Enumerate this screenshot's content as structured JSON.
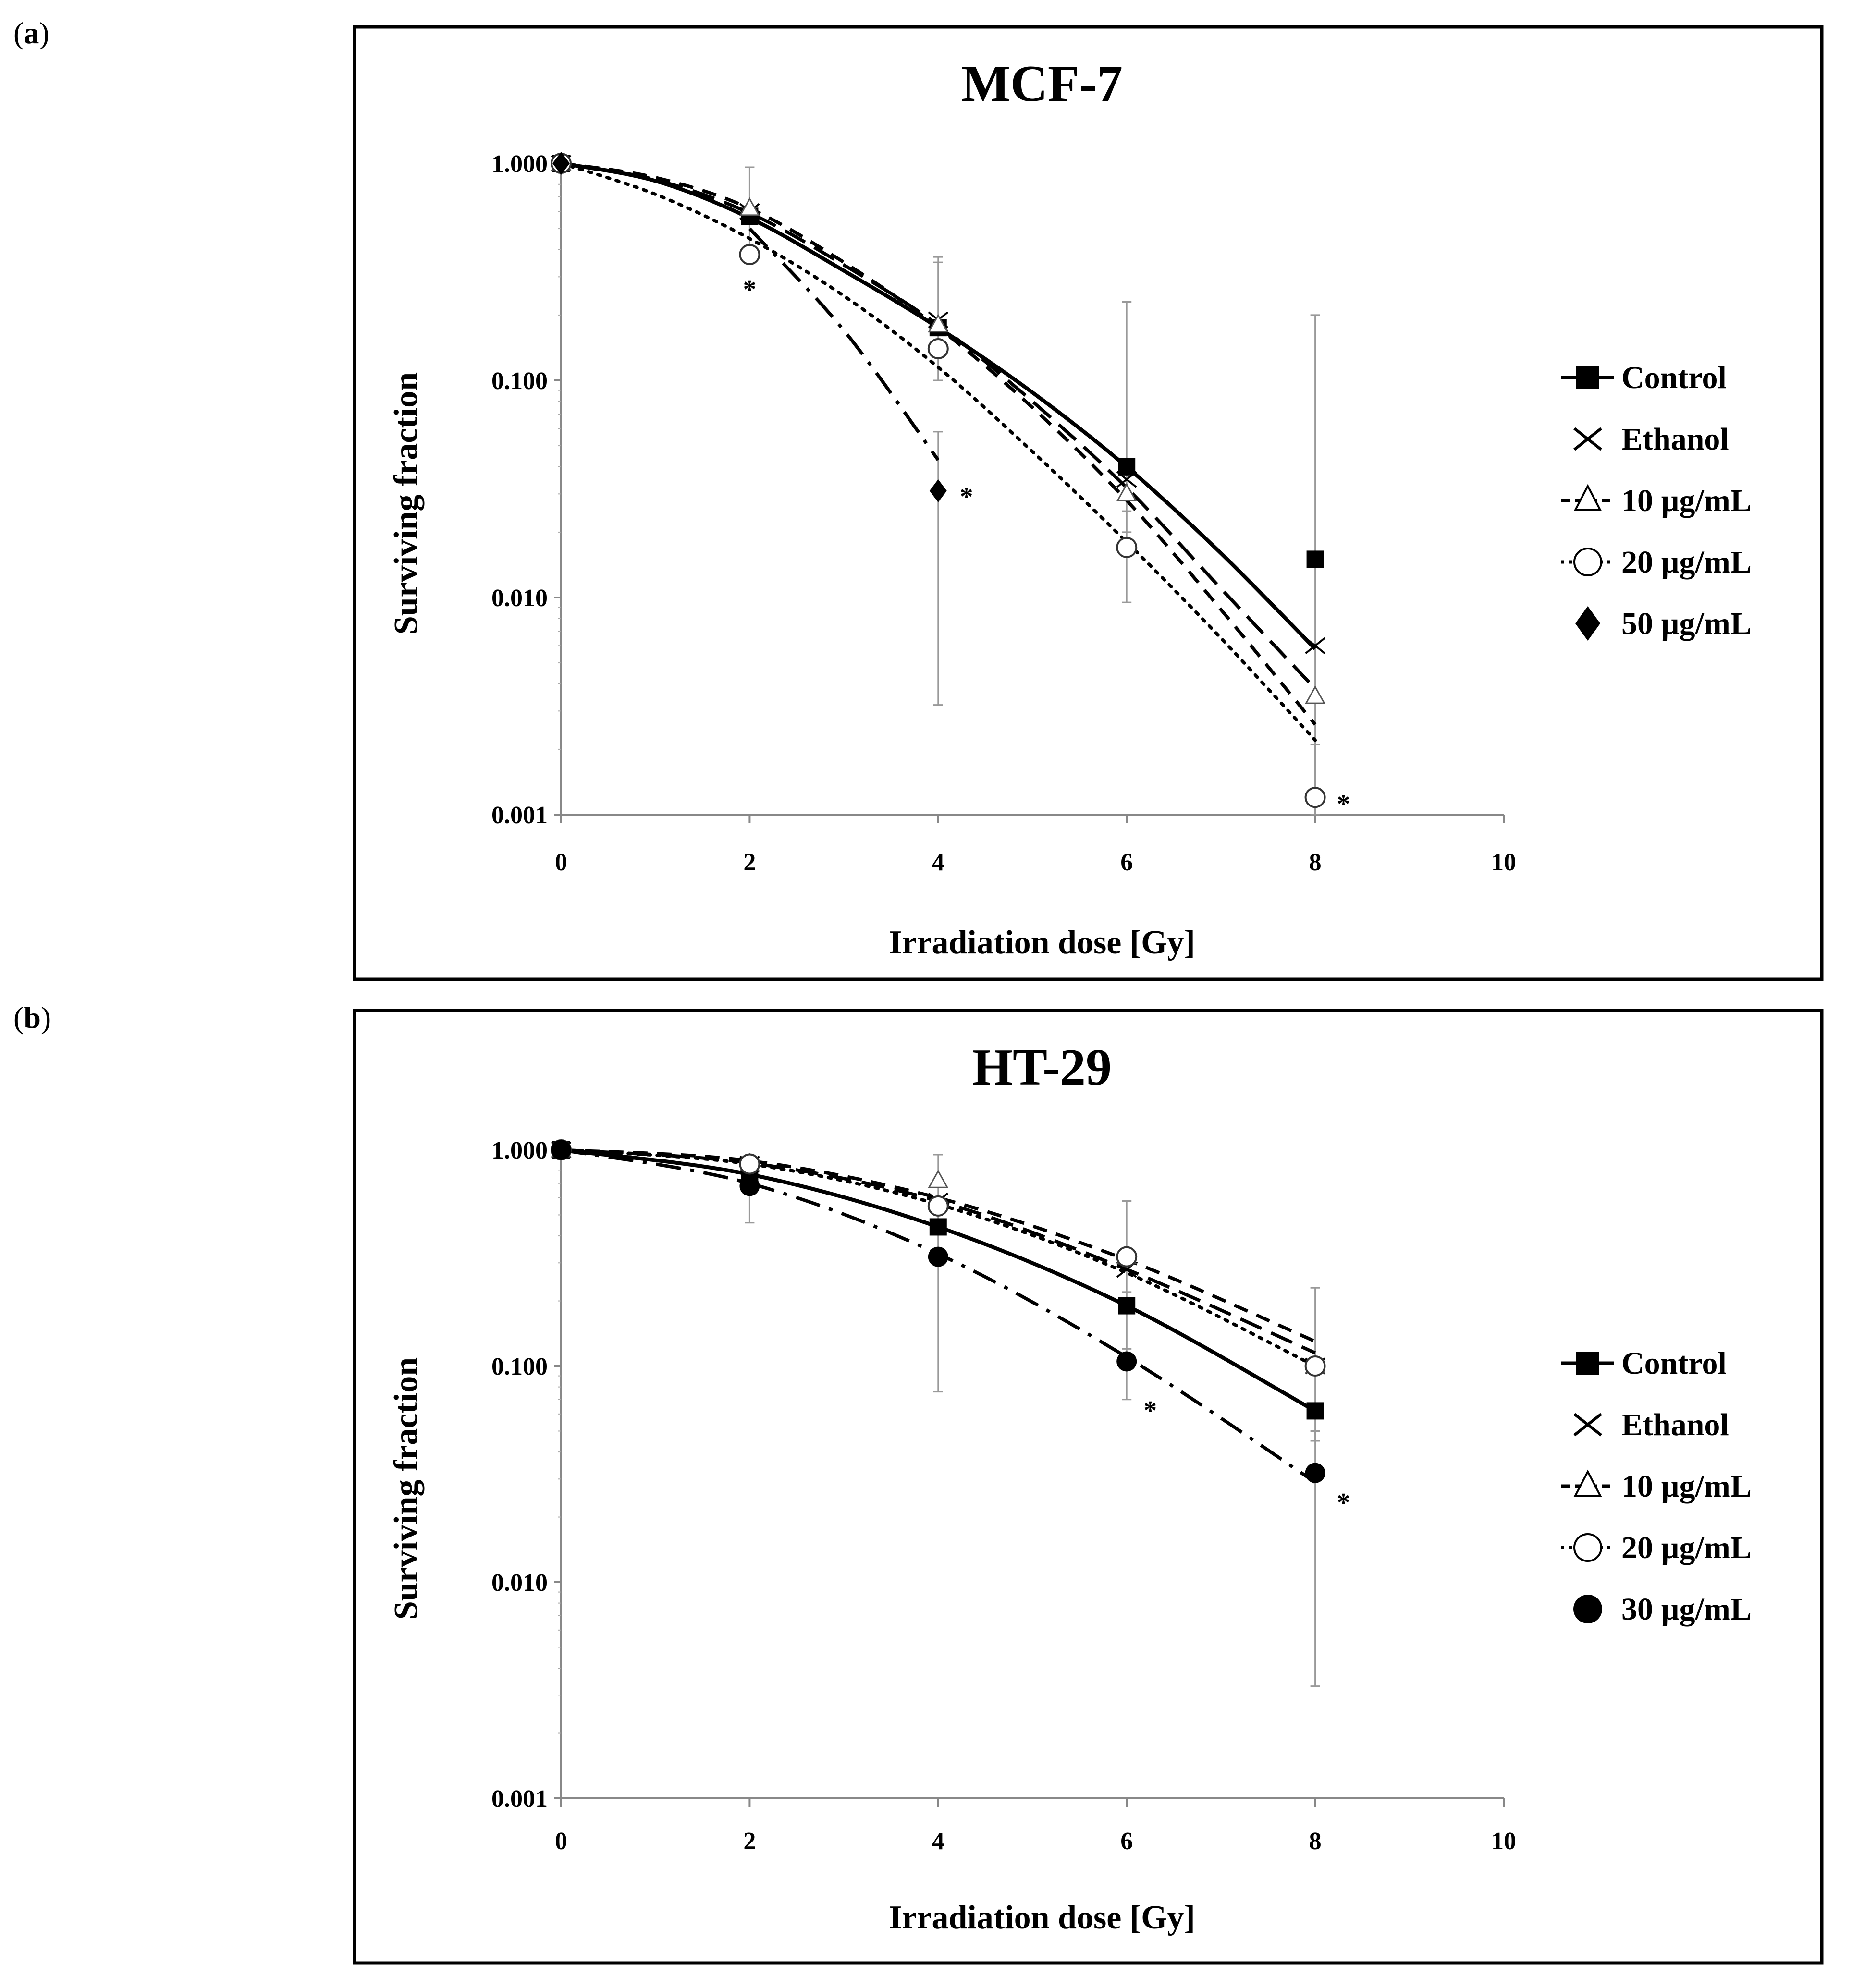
{
  "figure": {
    "panels": [
      {
        "label_open": "(",
        "label_letter": "a",
        "label_close": ")"
      },
      {
        "label_open": "(",
        "label_letter": "b",
        "label_close": ")"
      }
    ]
  },
  "chart_data": [
    {
      "type": "line",
      "title": "MCF-7",
      "xlabel": "Irradiation dose [Gy]",
      "ylabel": "Surviving fraction",
      "yscale": "log",
      "xlim": [
        0,
        10
      ],
      "ylim": [
        0.001,
        1
      ],
      "x_ticks": [
        "0",
        "2",
        "4",
        "6",
        "8",
        "10"
      ],
      "y_ticks": [
        "1.000",
        "0.100",
        "0.010",
        "0.001"
      ],
      "x_tick_values": [
        0,
        2,
        4,
        6,
        8,
        10
      ],
      "y_tick_values": [
        1,
        0.1,
        0.01,
        0.001
      ],
      "series": [
        {
          "name": "Control",
          "marker": "square",
          "line": "solid",
          "points": [
            {
              "x": 0,
              "y": 1
            },
            {
              "x": 2,
              "y": 0.57
            },
            {
              "x": 4,
              "y": 0.175
            },
            {
              "x": 6,
              "y": 0.04
            },
            {
              "x": 8,
              "y": 0.015
            }
          ],
          "errors": [
            {
              "x": 2,
              "lo": 0.38,
              "hi": 0.96
            },
            {
              "x": 4,
              "lo": 0.1,
              "hi": 0.37
            },
            {
              "x": 6,
              "lo": 0.02,
              "hi": 0.23
            },
            {
              "x": 8,
              "lo": 0.001,
              "hi": 0.2
            }
          ],
          "fit": [
            {
              "x": 0,
              "y": 1
            },
            {
              "x": 1,
              "y": 0.83
            },
            {
              "x": 2,
              "y": 0.56
            },
            {
              "x": 3,
              "y": 0.32
            },
            {
              "x": 4,
              "y": 0.175
            },
            {
              "x": 5,
              "y": 0.088
            },
            {
              "x": 6,
              "y": 0.04
            },
            {
              "x": 7,
              "y": 0.016
            },
            {
              "x": 8,
              "y": 0.0058
            }
          ]
        },
        {
          "name": "Ethanol",
          "marker": "x",
          "line": "longdash",
          "points": [
            {
              "x": 0,
              "y": 1
            },
            {
              "x": 2,
              "y": 0.6
            },
            {
              "x": 4,
              "y": 0.19
            },
            {
              "x": 6,
              "y": 0.035
            },
            {
              "x": 8,
              "y": 0.006
            }
          ],
          "errors": [],
          "fit": [
            {
              "x": 0,
              "y": 1
            },
            {
              "x": 1,
              "y": 0.84
            },
            {
              "x": 2,
              "y": 0.59
            },
            {
              "x": 3,
              "y": 0.34
            },
            {
              "x": 4,
              "y": 0.18
            },
            {
              "x": 5,
              "y": 0.08
            },
            {
              "x": 6,
              "y": 0.032
            },
            {
              "x": 7,
              "y": 0.011
            },
            {
              "x": 8,
              "y": 0.0038
            }
          ]
        },
        {
          "name": "10 µg/mL",
          "marker": "triangle",
          "line": "dash",
          "points": [
            {
              "x": 0,
              "y": 1
            },
            {
              "x": 2,
              "y": 0.62
            },
            {
              "x": 4,
              "y": 0.18
            },
            {
              "x": 6,
              "y": 0.03
            },
            {
              "x": 8,
              "y": 0.0035
            }
          ],
          "errors": [],
          "fit": [
            {
              "x": 0,
              "y": 1
            },
            {
              "x": 1,
              "y": 0.86
            },
            {
              "x": 2,
              "y": 0.62
            },
            {
              "x": 3,
              "y": 0.35
            },
            {
              "x": 4,
              "y": 0.175
            },
            {
              "x": 5,
              "y": 0.075
            },
            {
              "x": 6,
              "y": 0.028
            },
            {
              "x": 7,
              "y": 0.0088
            },
            {
              "x": 8,
              "y": 0.0026
            }
          ]
        },
        {
          "name": "20 µg/mL",
          "marker": "circle-open",
          "line": "dotted",
          "points": [
            {
              "x": 0,
              "y": 1
            },
            {
              "x": 2,
              "y": 0.38
            },
            {
              "x": 4,
              "y": 0.14
            },
            {
              "x": 6,
              "y": 0.017
            },
            {
              "x": 8,
              "y": 0.0012
            }
          ],
          "errors": [
            {
              "x": 4,
              "lo": 0.1,
              "hi": 0.35
            },
            {
              "x": 6,
              "lo": 0.0095,
              "hi": 0.025
            },
            {
              "x": 8,
              "lo": 0.001,
              "hi": 0.0021
            }
          ],
          "fit": [
            {
              "x": 0,
              "y": 1
            },
            {
              "x": 1,
              "y": 0.72
            },
            {
              "x": 2,
              "y": 0.45
            },
            {
              "x": 3,
              "y": 0.245
            },
            {
              "x": 4,
              "y": 0.115
            },
            {
              "x": 5,
              "y": 0.047
            },
            {
              "x": 6,
              "y": 0.018
            },
            {
              "x": 7,
              "y": 0.0065
            },
            {
              "x": 8,
              "y": 0.0022
            }
          ]
        },
        {
          "name": "50 µg/mL",
          "marker": "diamond",
          "line": "dashdot",
          "points": [
            {
              "x": 0,
              "y": 1
            },
            {
              "x": 4,
              "y": 0.031
            }
          ],
          "errors": [
            {
              "x": 4,
              "lo": 0.0032,
              "hi": 0.058
            }
          ],
          "fit": [
            {
              "x": 2,
              "y": 0.5
            },
            {
              "x": 3,
              "y": 0.17
            },
            {
              "x": 4,
              "y": 0.043
            }
          ]
        }
      ],
      "annotations": [
        {
          "text": "*",
          "x": 2,
          "y": 0.27
        },
        {
          "text": "*",
          "x": 4.3,
          "y": 0.03
        },
        {
          "text": "*",
          "x": 8.3,
          "y": 0.00115
        }
      ]
    },
    {
      "type": "line",
      "title": "HT-29",
      "xlabel": "Irradiation dose [Gy]",
      "ylabel": "Surviving fraction",
      "yscale": "log",
      "xlim": [
        0,
        10
      ],
      "ylim": [
        0.001,
        1
      ],
      "x_ticks": [
        "0",
        "2",
        "4",
        "6",
        "8",
        "10"
      ],
      "y_ticks": [
        "1.000",
        "0.100",
        "0.010",
        "0.001"
      ],
      "x_tick_values": [
        0,
        2,
        4,
        6,
        8,
        10
      ],
      "y_tick_values": [
        1,
        0.1,
        0.01,
        0.001
      ],
      "series": [
        {
          "name": "Control",
          "marker": "square",
          "line": "solid",
          "points": [
            {
              "x": 0,
              "y": 1
            },
            {
              "x": 2,
              "y": 0.75
            },
            {
              "x": 4,
              "y": 0.44
            },
            {
              "x": 6,
              "y": 0.19
            },
            {
              "x": 8,
              "y": 0.062
            }
          ],
          "errors": [
            {
              "x": 2,
              "lo": 0.46,
              "hi": 0.95
            },
            {
              "x": 6,
              "lo": 0.07,
              "hi": 0.22
            }
          ],
          "fit": [
            {
              "x": 0,
              "y": 1
            },
            {
              "x": 2,
              "y": 0.77
            },
            {
              "x": 4,
              "y": 0.44
            },
            {
              "x": 6,
              "y": 0.19
            },
            {
              "x": 8,
              "y": 0.062
            }
          ]
        },
        {
          "name": "Ethanol",
          "marker": "x",
          "line": "longdash",
          "points": [
            {
              "x": 0,
              "y": 1
            },
            {
              "x": 2,
              "y": 0.86
            },
            {
              "x": 4,
              "y": 0.58
            },
            {
              "x": 6,
              "y": 0.28
            },
            {
              "x": 8,
              "y": 0.1
            }
          ],
          "errors": [],
          "fit": [
            {
              "x": 0,
              "y": 1
            },
            {
              "x": 2,
              "y": 0.87
            },
            {
              "x": 4,
              "y": 0.58
            },
            {
              "x": 6,
              "y": 0.28
            },
            {
              "x": 8,
              "y": 0.115
            }
          ]
        },
        {
          "name": "10 µg/mL",
          "marker": "triangle",
          "line": "dash",
          "points": [
            {
              "x": 0,
              "y": 1
            },
            {
              "x": 2,
              "y": 0.86
            },
            {
              "x": 4,
              "y": 0.72
            },
            {
              "x": 6,
              "y": 0.32
            },
            {
              "x": 8,
              "y": 0.1
            }
          ],
          "errors": [
            {
              "x": 4,
              "lo": 0.35,
              "hi": 0.95
            }
          ],
          "fit": [
            {
              "x": 0,
              "y": 1
            },
            {
              "x": 2,
              "y": 0.89
            },
            {
              "x": 4,
              "y": 0.6
            },
            {
              "x": 6,
              "y": 0.31
            },
            {
              "x": 8,
              "y": 0.13
            }
          ]
        },
        {
          "name": "20 µg/mL",
          "marker": "circle-open",
          "line": "dotted",
          "points": [
            {
              "x": 0,
              "y": 1
            },
            {
              "x": 2,
              "y": 0.86
            },
            {
              "x": 4,
              "y": 0.55
            },
            {
              "x": 6,
              "y": 0.32
            },
            {
              "x": 8,
              "y": 0.1
            }
          ],
          "errors": [
            {
              "x": 6,
              "lo": 0.12,
              "hi": 0.58
            },
            {
              "x": 8,
              "lo": 0.045,
              "hi": 0.23
            }
          ],
          "fit": [
            {
              "x": 0,
              "y": 1
            },
            {
              "x": 2,
              "y": 0.86
            },
            {
              "x": 4,
              "y": 0.56
            },
            {
              "x": 6,
              "y": 0.27
            },
            {
              "x": 8,
              "y": 0.1
            }
          ]
        },
        {
          "name": "30 µg/mL",
          "marker": "circle-filled",
          "line": "dashdot",
          "points": [
            {
              "x": 0,
              "y": 1
            },
            {
              "x": 2,
              "y": 0.68
            },
            {
              "x": 4,
              "y": 0.32
            },
            {
              "x": 6,
              "y": 0.105
            },
            {
              "x": 8,
              "y": 0.032
            }
          ],
          "errors": [
            {
              "x": 4,
              "lo": 0.076,
              "hi": 0.5
            },
            {
              "x": 8,
              "lo": 0.0033,
              "hi": 0.05
            }
          ],
          "fit": [
            {
              "x": 0,
              "y": 1
            },
            {
              "x": 2,
              "y": 0.7
            },
            {
              "x": 4,
              "y": 0.33
            },
            {
              "x": 6,
              "y": 0.11
            },
            {
              "x": 8,
              "y": 0.029
            }
          ]
        }
      ],
      "annotations": [
        {
          "text": "*",
          "x": 6.25,
          "y": 0.064
        },
        {
          "text": "*",
          "x": 8.3,
          "y": 0.024
        }
      ]
    }
  ]
}
